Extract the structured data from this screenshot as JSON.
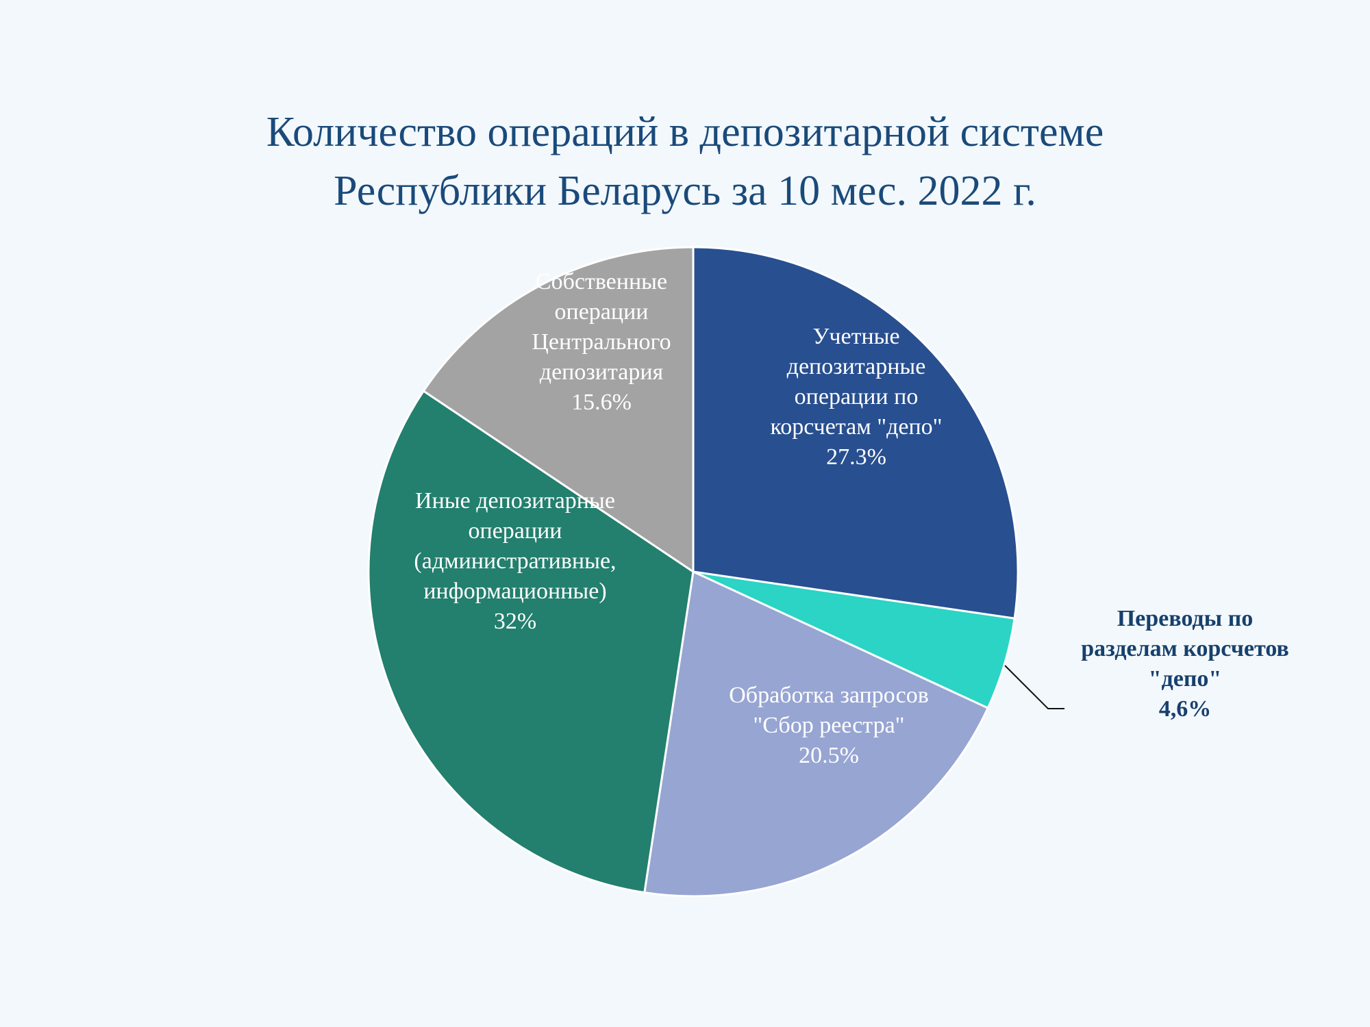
{
  "chart_data": {
    "type": "pie",
    "title_lines": [
      "Количество операций в депозитарной системе",
      "Республики Беларусь за 10 мес. 2022 г."
    ],
    "start_angle_deg": 0,
    "direction": "clockwise",
    "slices": [
      {
        "id": "accounting",
        "label_lines": [
          "Учетные",
          "депозитарные",
          "операции по",
          "корсчетам \"депо\""
        ],
        "value_label": "27.3%",
        "value": 27.3,
        "color": "#284f8f",
        "label_position": "inside"
      },
      {
        "id": "transfers",
        "label_lines": [
          "Переводы по",
          "разделам корсчетов",
          "\"депо\""
        ],
        "value_label": "4,6%",
        "value": 4.6,
        "color": "#2bd4c4",
        "label_position": "outside-right"
      },
      {
        "id": "requests",
        "label_lines": [
          "Обработка запросов",
          "\"Сбор реестра\""
        ],
        "value_label": "20.5%",
        "value": 20.5,
        "color": "#97a5d3",
        "label_position": "inside"
      },
      {
        "id": "other",
        "label_lines": [
          "Иные депозитарные",
          "операции",
          "(административные,",
          "информационные)"
        ],
        "value_label": "32%",
        "value": 32,
        "color": "#237f6e",
        "label_position": "inside"
      },
      {
        "id": "own",
        "label_lines": [
          "Собственные",
          "операции",
          "Центрального",
          "депозитария"
        ],
        "value_label": "15.6%",
        "value": 15.6,
        "color": "#a3a3a3",
        "label_position": "inside"
      }
    ]
  }
}
